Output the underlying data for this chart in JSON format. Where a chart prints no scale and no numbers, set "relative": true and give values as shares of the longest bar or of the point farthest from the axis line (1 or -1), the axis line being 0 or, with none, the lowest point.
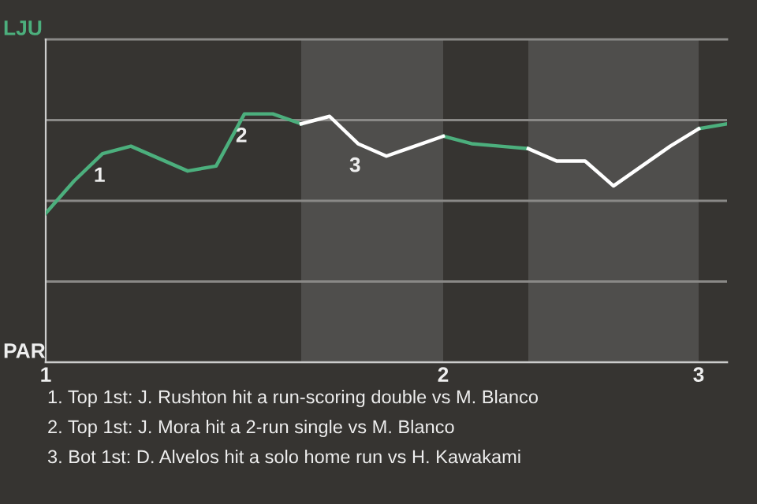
{
  "chart_data": {
    "type": "line",
    "categories": [
      "1",
      null,
      null,
      null,
      null,
      null,
      null,
      null,
      null,
      null,
      null,
      null,
      null,
      null,
      "2",
      null,
      null,
      null,
      null,
      null,
      null,
      null,
      null,
      "3",
      null
    ],
    "relative": true,
    "series": [
      {
        "color": "#4caf7d",
        "values": [
          0.6,
          0.73,
          0.84,
          0.87,
          0.82,
          0.77,
          0.79,
          1,
          1,
          0.96,
          null,
          null,
          null,
          null,
          0.91,
          0.88,
          0.87,
          0.86,
          null,
          null,
          null,
          null,
          null,
          0.94,
          0.96
        ]
      },
      {
        "color": "#ffffff",
        "values": [
          null,
          null,
          null,
          null,
          null,
          null,
          null,
          null,
          null,
          0.96,
          0.99,
          0.88,
          0.83,
          0.87,
          0.91,
          null,
          null,
          0.86,
          0.81,
          0.81,
          0.71,
          0.79,
          0.87,
          0.94,
          null
        ]
      }
    ],
    "grid": "y",
    "marker": "none",
    "line_style": "solid",
    "ref_lines": [
      {
        "axis": "y",
        "value": 1.3,
        "label": "LJU"
      },
      {
        "axis": "y",
        "value": 0,
        "label": "PAR"
      }
    ],
    "annotations": [
      {
        "text": "1",
        "y": 0.84
      },
      {
        "text": "2",
        "y": 1
      },
      {
        "text": "3",
        "y": 0.88
      },
      "1. Top 1st: J. Rushton hit a run-scoring double vs M. Blanco",
      "2. Top 1st: J. Mora hit a 2-run single vs M. Blanco",
      "3. Bot 1st: D. Alvelos hit a solo home run vs H. Kawakami"
    ]
  }
}
